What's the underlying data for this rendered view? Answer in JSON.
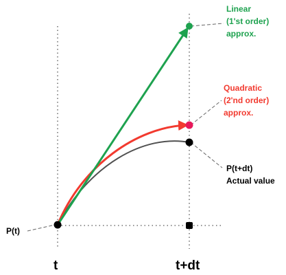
{
  "labels": {
    "linear": [
      "Linear",
      "(1'st order)",
      "approx."
    ],
    "quadratic": [
      "Quadratic",
      "(2'nd order)",
      "approx."
    ],
    "actual": [
      "P(t+dt)",
      "Actual value"
    ],
    "start": "P(t)",
    "t": "t",
    "t_dt": "t+dt"
  },
  "colors": {
    "linear": "#1ea24f",
    "quadratic": "#f23a2f",
    "quadratic_point": "#e8185a",
    "actual": "#505050",
    "guides": "#555555"
  },
  "icons": {
    "arrow": "arrowhead",
    "point": "filled-circle"
  }
}
